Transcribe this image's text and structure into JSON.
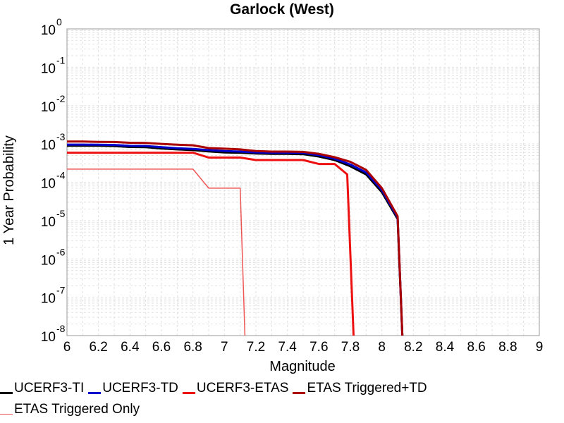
{
  "chart_data": {
    "type": "line",
    "title": "Garlock (West)",
    "xlabel": "Magnitude",
    "ylabel": "1 Year Probability",
    "xlim": [
      6,
      9
    ],
    "ylim": [
      1e-08,
      1
    ],
    "yscale": "log",
    "grid": true,
    "legend_position": "bottom",
    "x_ticks": [
      "6",
      "6.2",
      "6.4",
      "6.6",
      "6.8",
      "7",
      "7.2",
      "7.4",
      "7.6",
      "7.8",
      "8",
      "8.2",
      "8.4",
      "8.6",
      "8.8",
      "9"
    ],
    "y_ticks": [
      {
        "base": "10",
        "exp": "0"
      },
      {
        "base": "10",
        "exp": "-1"
      },
      {
        "base": "10",
        "exp": "-2"
      },
      {
        "base": "10",
        "exp": "-3"
      },
      {
        "base": "10",
        "exp": "-4"
      },
      {
        "base": "10",
        "exp": "-5"
      },
      {
        "base": "10",
        "exp": "-6"
      },
      {
        "base": "10",
        "exp": "-7"
      },
      {
        "base": "10",
        "exp": "-8"
      }
    ],
    "series": [
      {
        "name": "UCERF3-TI",
        "color": "#000000",
        "width": 3,
        "x": [
          6.0,
          6.1,
          6.2,
          6.3,
          6.4,
          6.5,
          6.6,
          6.7,
          6.8,
          6.9,
          7.0,
          7.1,
          7.2,
          7.3,
          7.4,
          7.5,
          7.6,
          7.7,
          7.8,
          7.9,
          8.0,
          8.1,
          8.13
        ],
        "y": [
          0.0009,
          0.0009,
          0.0009,
          0.00088,
          0.00083,
          0.00082,
          0.00076,
          0.00072,
          0.00069,
          0.00064,
          0.0006,
          0.00059,
          0.00056,
          0.00055,
          0.00055,
          0.00054,
          0.00047,
          0.00038,
          0.00026,
          0.00016,
          5.5e-05,
          1.1e-05,
          1e-08
        ]
      },
      {
        "name": "UCERF3-TD",
        "color": "#0000cc",
        "width": 3,
        "x": [
          6.0,
          6.1,
          6.2,
          6.3,
          6.4,
          6.5,
          6.6,
          6.7,
          6.8,
          6.9,
          7.0,
          7.1,
          7.2,
          7.3,
          7.4,
          7.5,
          7.6,
          7.7,
          7.8,
          7.9,
          8.0,
          8.1,
          8.13
        ],
        "y": [
          0.00096,
          0.00096,
          0.00095,
          0.00094,
          0.00089,
          0.00088,
          0.00082,
          0.00077,
          0.00074,
          0.00069,
          0.00065,
          0.00063,
          0.0006,
          0.00059,
          0.00059,
          0.00058,
          0.00051,
          0.00041,
          0.00029,
          0.00018,
          6.2e-05,
          1.2e-05,
          1e-08
        ]
      },
      {
        "name": "UCERF3-ETAS",
        "color": "#ee1111",
        "width": 3,
        "x": [
          6.0,
          6.8,
          6.9,
          7.1,
          7.2,
          7.5,
          7.6,
          7.7,
          7.78,
          7.82
        ],
        "y": [
          0.00059,
          0.00059,
          0.00044,
          0.00044,
          0.00038,
          0.00038,
          0.0003,
          0.0003,
          0.00016,
          1e-08
        ]
      },
      {
        "name": "ETAS Triggered+TD",
        "color": "#aa0000",
        "width": 3,
        "x": [
          6.0,
          6.1,
          6.2,
          6.3,
          6.4,
          6.5,
          6.6,
          6.7,
          6.8,
          6.9,
          7.0,
          7.1,
          7.2,
          7.3,
          7.4,
          7.5,
          7.6,
          7.7,
          7.8,
          7.9,
          8.0,
          8.1,
          8.13
        ],
        "y": [
          0.00115,
          0.00115,
          0.00113,
          0.00112,
          0.00107,
          0.00106,
          0.001,
          0.00095,
          0.00092,
          0.00078,
          0.00075,
          0.00072,
          0.00065,
          0.00063,
          0.00063,
          0.00062,
          0.00055,
          0.00045,
          0.00034,
          0.00021,
          7e-05,
          1.3e-05,
          1e-08
        ]
      },
      {
        "name": "ETAS Triggered Only",
        "color": "#ee5555",
        "width": 1.5,
        "x": [
          6.0,
          6.8,
          6.9,
          7.1,
          7.13
        ],
        "y": [
          0.00022,
          0.00022,
          7e-05,
          7e-05,
          1e-08
        ]
      }
    ]
  }
}
